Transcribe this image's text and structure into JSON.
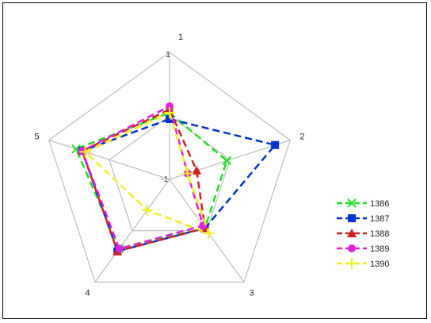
{
  "chart_data": {
    "type": "radar",
    "axes": [
      "1",
      "2",
      "3",
      "4",
      "5"
    ],
    "rlim": [
      -1,
      1
    ],
    "radial_ticks": [
      "-1",
      "1"
    ],
    "grid": true,
    "legend_position": "right",
    "series": [
      {
        "name": "1386",
        "color": "#22dd22",
        "marker": "x",
        "values": [
          0.05,
          -0.05,
          -0.05,
          0.35,
          0.55
        ]
      },
      {
        "name": "1387",
        "color": "#0033cc",
        "marker": "square",
        "values": [
          -0.05,
          0.75,
          -0.05,
          0.4,
          0.45
        ]
      },
      {
        "name": "1388",
        "color": "#cc2222",
        "marker": "triangle",
        "values": [
          0.1,
          -0.55,
          -0.05,
          0.4,
          0.45
        ]
      },
      {
        "name": "1389",
        "color": "#dd22dd",
        "marker": "circle",
        "values": [
          0.15,
          -0.7,
          -0.1,
          0.35,
          0.45
        ]
      },
      {
        "name": "1390",
        "color": "#eeee22",
        "marker": "plus",
        "values": [
          0.05,
          -0.7,
          0.05,
          -0.4,
          0.4
        ]
      }
    ]
  }
}
